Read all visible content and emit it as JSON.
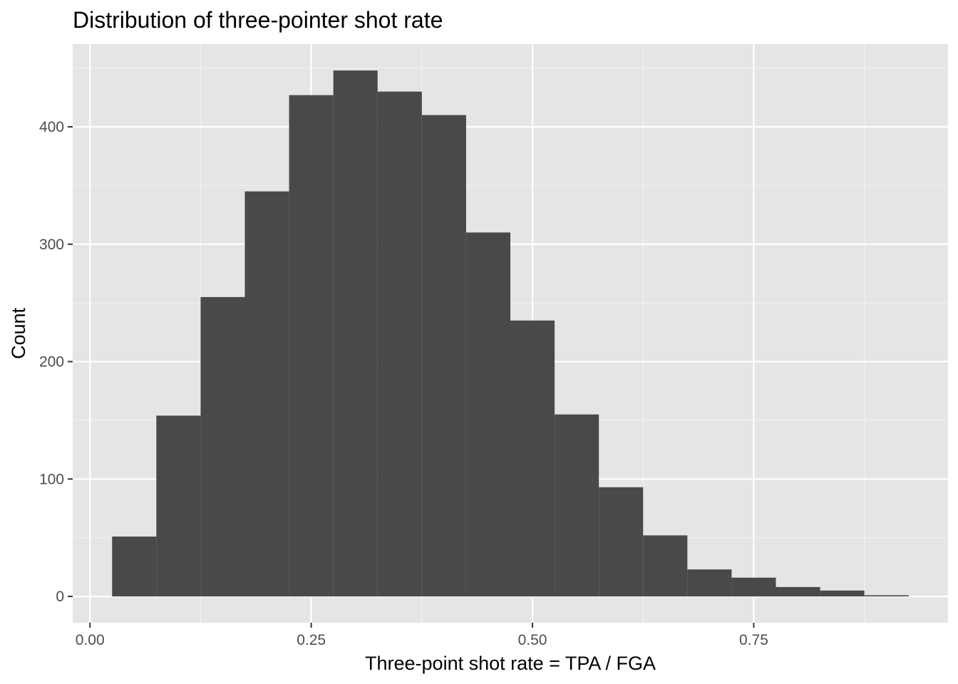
{
  "chart_data": {
    "type": "bar",
    "subtype": "histogram",
    "title": "Distribution of three-pointer shot rate",
    "xlabel": "Three-point shot rate = TPA / FGA",
    "ylabel": "Count",
    "bin_width": 0.05,
    "bins": [
      {
        "x0": 0.025,
        "x1": 0.075,
        "count": 51
      },
      {
        "x0": 0.075,
        "x1": 0.125,
        "count": 154
      },
      {
        "x0": 0.125,
        "x1": 0.175,
        "count": 255
      },
      {
        "x0": 0.175,
        "x1": 0.225,
        "count": 345
      },
      {
        "x0": 0.225,
        "x1": 0.275,
        "count": 427
      },
      {
        "x0": 0.275,
        "x1": 0.325,
        "count": 448
      },
      {
        "x0": 0.325,
        "x1": 0.375,
        "count": 430
      },
      {
        "x0": 0.375,
        "x1": 0.425,
        "count": 410
      },
      {
        "x0": 0.425,
        "x1": 0.475,
        "count": 310
      },
      {
        "x0": 0.475,
        "x1": 0.525,
        "count": 235
      },
      {
        "x0": 0.525,
        "x1": 0.575,
        "count": 155
      },
      {
        "x0": 0.575,
        "x1": 0.625,
        "count": 93
      },
      {
        "x0": 0.625,
        "x1": 0.675,
        "count": 52
      },
      {
        "x0": 0.675,
        "x1": 0.725,
        "count": 23
      },
      {
        "x0": 0.725,
        "x1": 0.775,
        "count": 16
      },
      {
        "x0": 0.775,
        "x1": 0.825,
        "count": 8
      },
      {
        "x0": 0.825,
        "x1": 0.875,
        "count": 5
      },
      {
        "x0": 0.875,
        "x1": 0.925,
        "count": 1
      }
    ],
    "xlim": [
      -0.0195,
      0.9695
    ],
    "ylim": [
      -22.4,
      470.4
    ],
    "x_ticks": [
      {
        "value": 0.0,
        "label": "0.00"
      },
      {
        "value": 0.25,
        "label": "0.25"
      },
      {
        "value": 0.5,
        "label": "0.50"
      },
      {
        "value": 0.75,
        "label": "0.75"
      }
    ],
    "y_ticks": [
      {
        "value": 0,
        "label": "0"
      },
      {
        "value": 100,
        "label": "100"
      },
      {
        "value": 200,
        "label": "200"
      },
      {
        "value": 300,
        "label": "300"
      },
      {
        "value": 400,
        "label": "400"
      }
    ],
    "x_minor_ticks": [
      0.125,
      0.375,
      0.625,
      0.875
    ],
    "y_minor_ticks": [
      50,
      150,
      250,
      350,
      450
    ],
    "grid": true,
    "legend": "none",
    "colors": {
      "bar_fill": "#494949",
      "panel_background": "#e5e5e5",
      "grid_major": "#ffffff",
      "grid_minor": "#f2f2f2",
      "tick_label": "#4d4d4d",
      "tick_mark": "#333333"
    }
  }
}
